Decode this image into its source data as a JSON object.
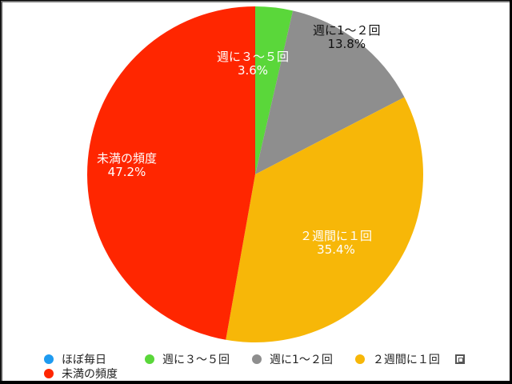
{
  "chart_data": {
    "type": "pie",
    "title": "",
    "start_angle": "12 o'clock, clockwise",
    "categories": [
      "ほぼ毎日",
      "週に３〜５回",
      "週に1〜２回",
      "２週間に１回",
      "未満の頻度"
    ],
    "values": [
      0,
      3.6,
      13.8,
      35.4,
      47.2
    ],
    "unit": "%",
    "colors": [
      "#1e9bf0",
      "#5ad73a",
      "#8e8e8e",
      "#f7b708",
      "#ff2600"
    ],
    "data_labels": [
      {
        "name": "週に３〜５回",
        "value": "3.6%"
      },
      {
        "name": "週に1〜２回",
        "value": "13.8%"
      },
      {
        "name": "２週間に１回",
        "value": "35.4%"
      },
      {
        "name": "未満の頻度",
        "value": "47.2%"
      }
    ],
    "legend_position": "bottom"
  },
  "labels": {
    "green": {
      "name": "週に３〜５回",
      "pct": "3.6%"
    },
    "gray": {
      "name": "週に1〜２回",
      "pct": "13.8%"
    },
    "yellow": {
      "name": "２週間に１回",
      "pct": "35.4%"
    },
    "red": {
      "name": "未満の頻度",
      "pct": "47.2%"
    }
  },
  "legend": {
    "items": [
      {
        "label": "ほぼ毎日",
        "color": "#1e9bf0"
      },
      {
        "label": "週に３〜５回",
        "color": "#5ad73a"
      },
      {
        "label": "週に1〜２回",
        "color": "#8e8e8e"
      },
      {
        "label": "２週間に１回",
        "color": "#f7b708"
      },
      {
        "label": "未満の頻度",
        "color": "#ff2600"
      }
    ]
  }
}
